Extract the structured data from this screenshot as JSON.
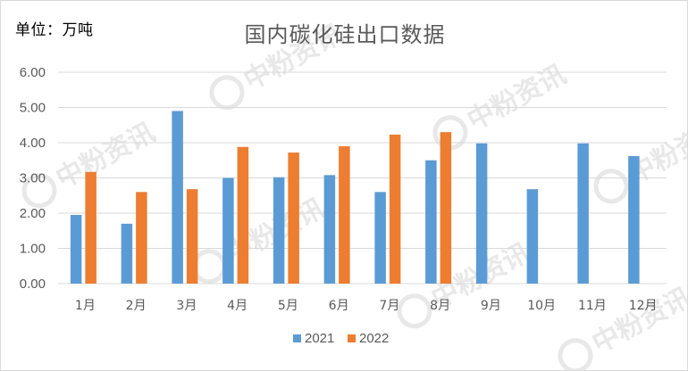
{
  "unit_label": "单位：万吨",
  "watermark": "中粉资讯",
  "colors": {
    "series_2021": "#5b9bd5",
    "series_2022": "#ed7d31",
    "grid": "#d9d9d9",
    "text": "#595959"
  },
  "chart_data": {
    "type": "bar",
    "title": "国内碳化硅出口数据",
    "xlabel": "",
    "ylabel": "",
    "ylim": [
      0,
      6
    ],
    "y_ticks": [
      "0.00",
      "1.00",
      "2.00",
      "3.00",
      "4.00",
      "5.00",
      "6.00"
    ],
    "grid": true,
    "legend_position": "bottom",
    "categories": [
      "1月",
      "2月",
      "3月",
      "4月",
      "5月",
      "6月",
      "7月",
      "8月",
      "9月",
      "10月",
      "11月",
      "12月"
    ],
    "series": [
      {
        "name": "2021",
        "values": [
          1.95,
          1.7,
          4.9,
          3.0,
          3.02,
          3.08,
          2.6,
          3.5,
          3.98,
          2.68,
          3.98,
          3.62
        ]
      },
      {
        "name": "2022",
        "values": [
          3.17,
          2.6,
          2.68,
          3.88,
          3.72,
          3.9,
          4.23,
          4.3,
          null,
          null,
          null,
          null
        ]
      }
    ]
  }
}
